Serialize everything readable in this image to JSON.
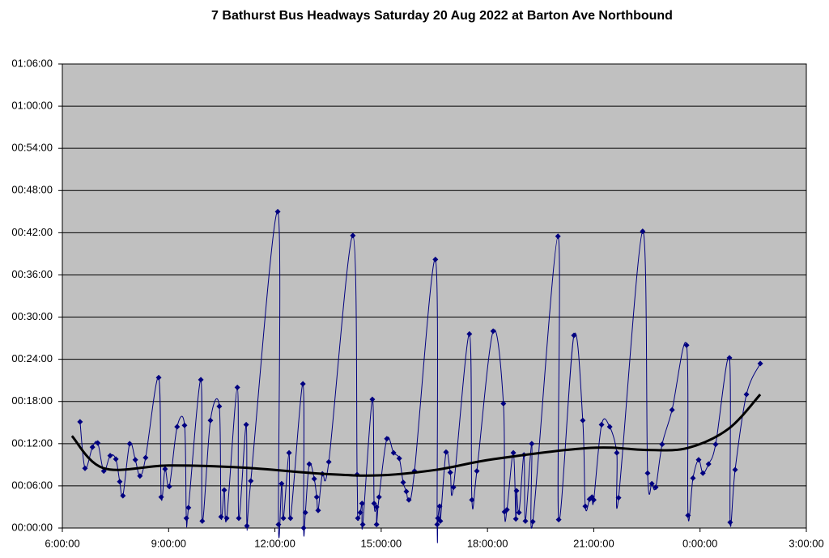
{
  "chart_data": {
    "type": "line",
    "title": "7 Bathurst Bus Headways Saturday 20 Aug 2022 at Barton Ave Northbound",
    "xlim": [
      6,
      27
    ],
    "xticks": [
      {
        "value": 6,
        "label": "6:00:00"
      },
      {
        "value": 9,
        "label": "9:00:00"
      },
      {
        "value": 12,
        "label": "12:00:00"
      },
      {
        "value": 15,
        "label": "15:00:00"
      },
      {
        "value": 18,
        "label": "18:00:00"
      },
      {
        "value": 21,
        "label": "21:00:00"
      },
      {
        "value": 24,
        "label": "0:00:00"
      },
      {
        "value": 27,
        "label": "3:00:00"
      }
    ],
    "ylim": [
      0,
      66
    ],
    "yticks": [
      {
        "value": 0,
        "label": "00:00:00"
      },
      {
        "value": 6,
        "label": "00:06:00"
      },
      {
        "value": 12,
        "label": "00:12:00"
      },
      {
        "value": 18,
        "label": "00:18:00"
      },
      {
        "value": 24,
        "label": "00:24:00"
      },
      {
        "value": 30,
        "label": "00:30:00"
      },
      {
        "value": 36,
        "label": "00:36:00"
      },
      {
        "value": 42,
        "label": "00:42:00"
      },
      {
        "value": 48,
        "label": "00:48:00"
      },
      {
        "value": 54,
        "label": "00:54:00"
      },
      {
        "value": 60,
        "label": "01:00:00"
      },
      {
        "value": 66,
        "label": "01:06:00"
      }
    ],
    "grid": true,
    "series": [
      {
        "color": "#000080",
        "markers": true,
        "x": [
          6.5,
          6.64,
          6.85,
          7.0,
          7.17,
          7.35,
          7.51,
          7.62,
          7.71,
          7.9,
          8.06,
          8.19,
          8.35,
          8.72,
          8.79,
          8.9,
          9.02,
          9.24,
          9.45,
          9.5,
          9.56,
          9.91,
          9.95,
          10.18,
          10.43,
          10.48,
          10.57,
          10.64,
          10.94,
          10.98,
          11.19,
          11.21,
          11.32,
          12.08,
          12.1,
          12.19,
          12.24,
          12.4,
          12.44,
          12.79,
          12.81,
          12.86,
          12.97,
          13.11,
          13.18,
          13.22,
          13.34,
          13.52,
          14.2,
          14.32,
          14.34,
          14.41,
          14.46,
          14.48,
          14.75,
          14.8,
          14.87,
          14.87,
          14.94,
          15.16,
          15.35,
          15.51,
          15.62,
          15.71,
          15.78,
          15.94,
          16.53,
          16.58,
          16.6,
          16.65,
          16.67,
          16.83,
          16.95,
          17.04,
          17.49,
          17.56,
          17.7,
          18.16,
          18.45,
          18.48,
          18.55,
          18.73,
          18.8,
          18.82,
          18.89,
          19.03,
          19.07,
          19.25,
          19.28,
          19.99,
          20.01,
          20.44,
          20.69,
          20.76,
          20.88,
          20.95,
          21.0,
          21.22,
          21.45,
          21.65,
          21.7,
          22.38,
          22.52,
          22.64,
          22.75,
          22.93,
          23.21,
          23.62,
          23.66,
          23.8,
          23.96,
          24.08,
          24.24,
          24.44,
          24.83,
          24.85,
          24.99,
          25.31,
          25.7
        ],
        "values": [
          15.1,
          8.5,
          11.5,
          12.1,
          8.1,
          10.3,
          9.8,
          6.6,
          4.6,
          12.0,
          9.7,
          7.4,
          10.0,
          21.4,
          4.4,
          8.4,
          5.9,
          14.4,
          14.6,
          1.4,
          2.9,
          21.1,
          1.0,
          15.3,
          17.3,
          1.6,
          5.4,
          1.4,
          20.0,
          1.4,
          14.7,
          0.3,
          6.7,
          45.0,
          0.5,
          6.3,
          1.4,
          10.7,
          1.4,
          20.5,
          0,
          2.2,
          9.1,
          7.0,
          4.4,
          2.5,
          7.7,
          9.4,
          41.6,
          7.6,
          1.4,
          2.2,
          3.5,
          0.5,
          18.3,
          3.5,
          3.0,
          0.5,
          4.4,
          12.7,
          10.7,
          9.9,
          6.5,
          5.2,
          4.0,
          8.1,
          38.2,
          0.5,
          1.4,
          3.1,
          1.0,
          10.8,
          7.9,
          5.8,
          27.6,
          4.0,
          8.1,
          28.0,
          17.7,
          2.3,
          2.6,
          10.7,
          1.3,
          5.3,
          2.2,
          10.4,
          1.0,
          12.0,
          0.9,
          41.5,
          1.2,
          27.4,
          15.3,
          3.1,
          4.1,
          4.4,
          4.0,
          14.7,
          14.4,
          10.7,
          4.3,
          42.2,
          7.8,
          6.3,
          5.8,
          11.9,
          16.8,
          26.0,
          1.8,
          7.1,
          9.7,
          7.8,
          9.1,
          11.9,
          24.2,
          0.8,
          8.3,
          19.0,
          23.4
        ]
      },
      {
        "color": "#000000",
        "markers": false,
        "x": [
          6.27,
          7.17,
          9.0,
          11.1,
          13.38,
          14.98,
          16.58,
          18.18,
          20.92,
          22.52,
          23.66,
          24.8,
          25.7
        ],
        "values": [
          13.1,
          8.5,
          8.9,
          8.6,
          7.7,
          7.5,
          8.3,
          9.8,
          11.4,
          11.1,
          11.4,
          14.1,
          19.0
        ]
      }
    ]
  }
}
